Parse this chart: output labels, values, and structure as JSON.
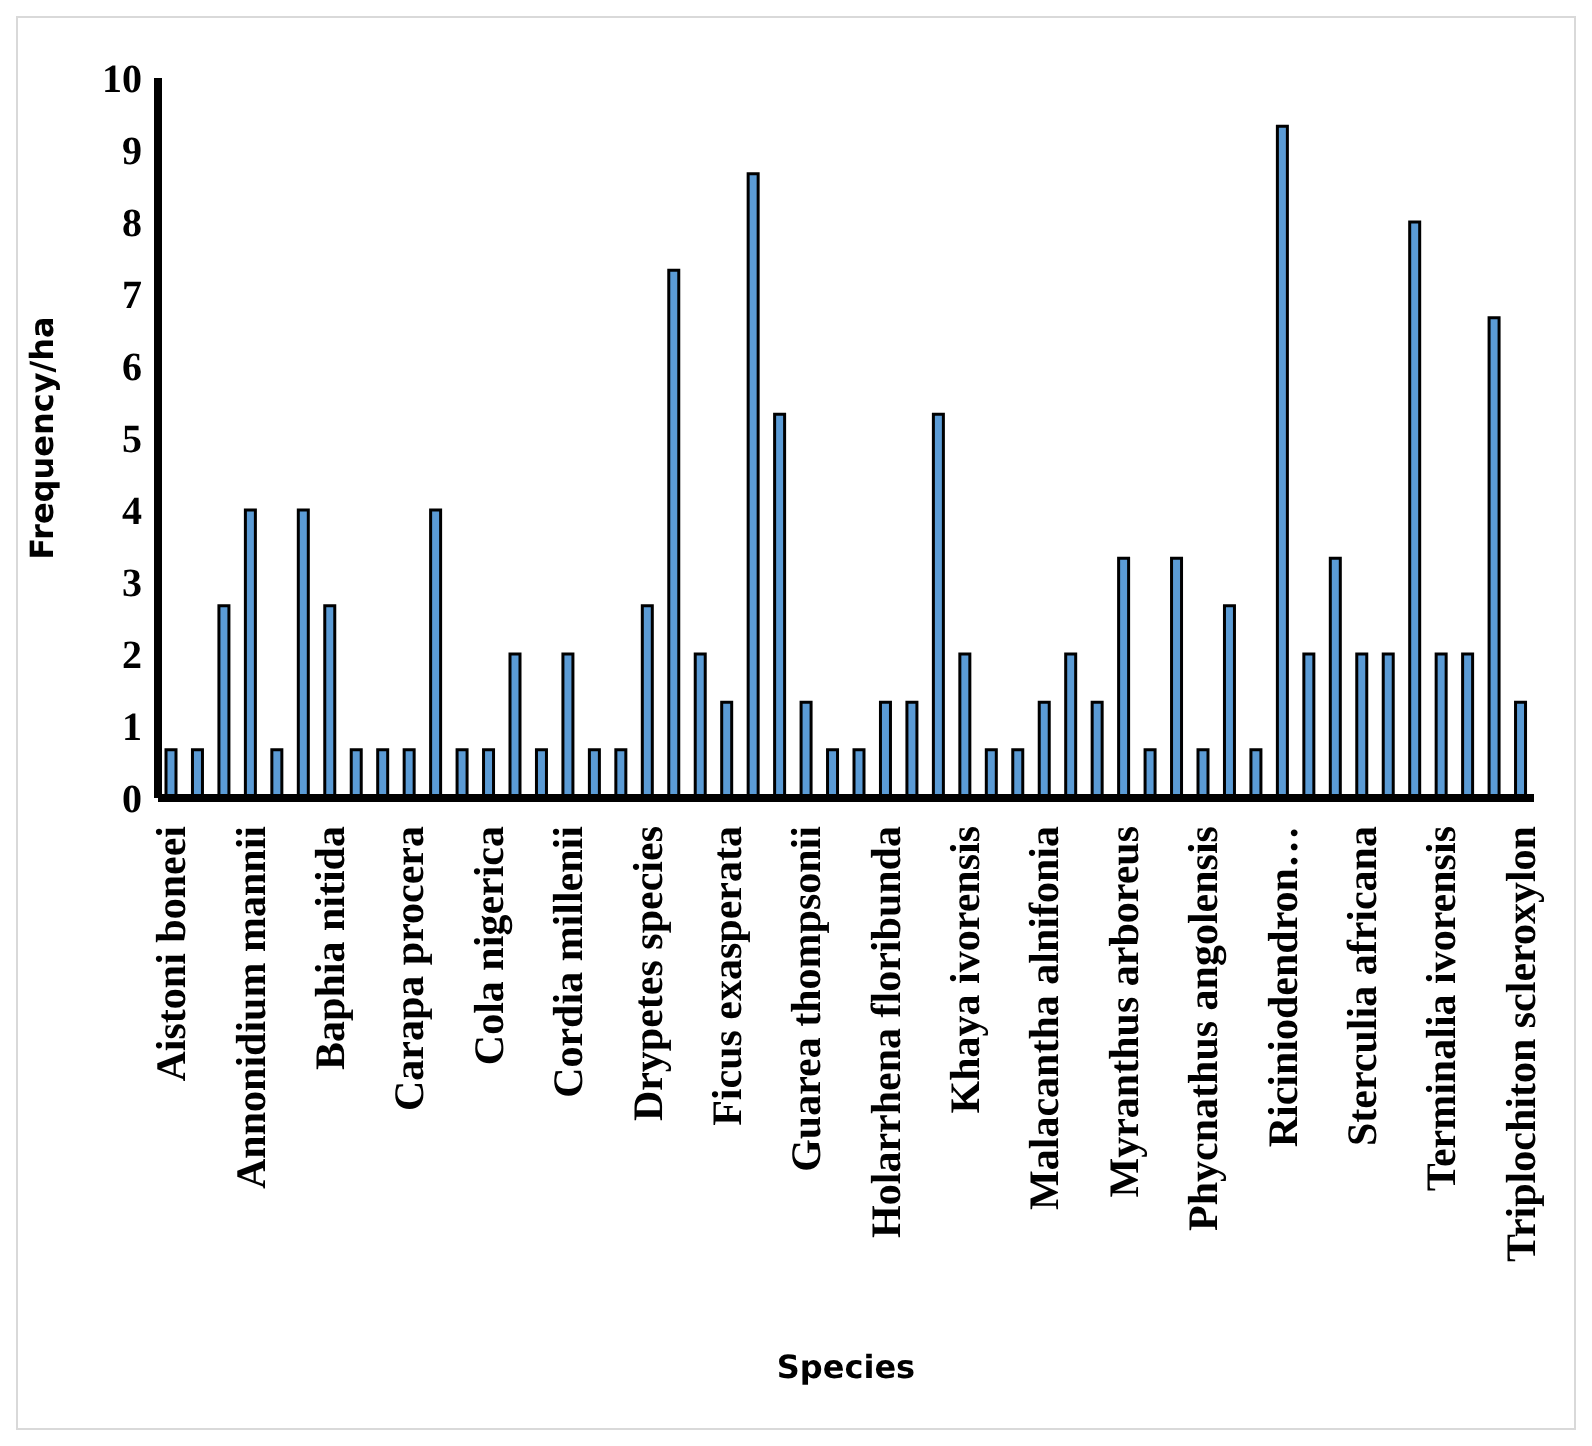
{
  "chart_data": {
    "type": "bar",
    "xlabel": "Species",
    "ylabel": "Frequency/ha",
    "categories": [
      "Aistoni boneei",
      null,
      null,
      "Annonidium mannii",
      null,
      null,
      "Baphia nitida",
      null,
      null,
      "Carapa procera",
      null,
      null,
      "Cola nigerica",
      null,
      null,
      "Cordia millenii",
      null,
      null,
      "Drypetes species",
      null,
      null,
      "Ficus exasperata",
      null,
      null,
      "Guarea thompsonii",
      null,
      null,
      "Holarrhena floribunda",
      null,
      null,
      "Khaya ivorensis",
      null,
      null,
      "Malacantha alnifonia",
      null,
      null,
      "Myranthus arboreus",
      null,
      null,
      "Phycnathus angolensis",
      null,
      null,
      "Riciniodendron…",
      null,
      null,
      "Sterculia africana",
      null,
      null,
      "Terminalia ivorensis",
      null,
      null,
      "Triplochiton scleroxylon"
    ],
    "values": [
      0.67,
      0.67,
      2.67,
      4,
      0.67,
      4,
      2.67,
      0.67,
      0.67,
      0.67,
      4,
      0.67,
      0.67,
      2,
      0.67,
      2,
      0.67,
      0.67,
      2.67,
      7.33,
      2,
      1.33,
      8.67,
      5.33,
      1.33,
      0.67,
      0.67,
      1.33,
      1.33,
      5.33,
      2,
      0.67,
      0.67,
      1.33,
      2,
      1.33,
      3.33,
      0.67,
      3.33,
      0.67,
      2.67,
      0.67,
      9.33,
      2,
      3.33,
      2,
      2,
      8,
      2,
      2,
      6.67,
      1.33
    ],
    "color": "#5b9bd5",
    "ylim": [
      0,
      10
    ],
    "yticks": [
      0,
      1,
      2,
      3,
      4,
      5,
      6,
      7,
      8,
      9,
      10
    ],
    "grid": false,
    "legend": false
  }
}
